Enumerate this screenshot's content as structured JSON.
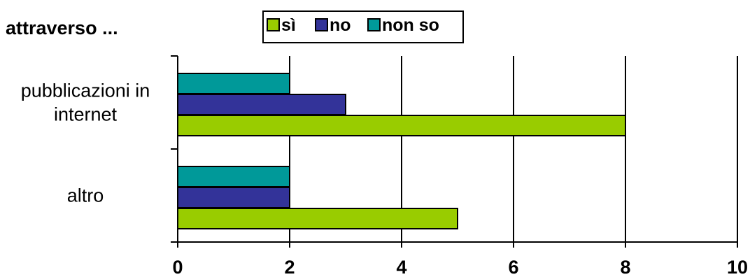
{
  "chart_data": {
    "type": "bar",
    "orientation": "horizontal",
    "title": "attraverso ...",
    "categories": [
      "pubblicazioni in internet",
      "altro"
    ],
    "category_lines": [
      [
        "pubblicazioni in",
        "internet"
      ],
      [
        "altro"
      ]
    ],
    "series": [
      {
        "name": "non so",
        "values": [
          2,
          2
        ],
        "color": "#009999"
      },
      {
        "name": "no",
        "values": [
          3,
          2
        ],
        "color": "#333399"
      },
      {
        "name": "sì",
        "values": [
          8,
          5
        ],
        "color": "#99CC00"
      }
    ],
    "legend_order": [
      "sì",
      "no",
      "non so"
    ],
    "xlim": [
      0,
      10
    ],
    "xticks": [
      0,
      2,
      4,
      6,
      8,
      10
    ],
    "grid": "vertical",
    "legend": "top"
  }
}
